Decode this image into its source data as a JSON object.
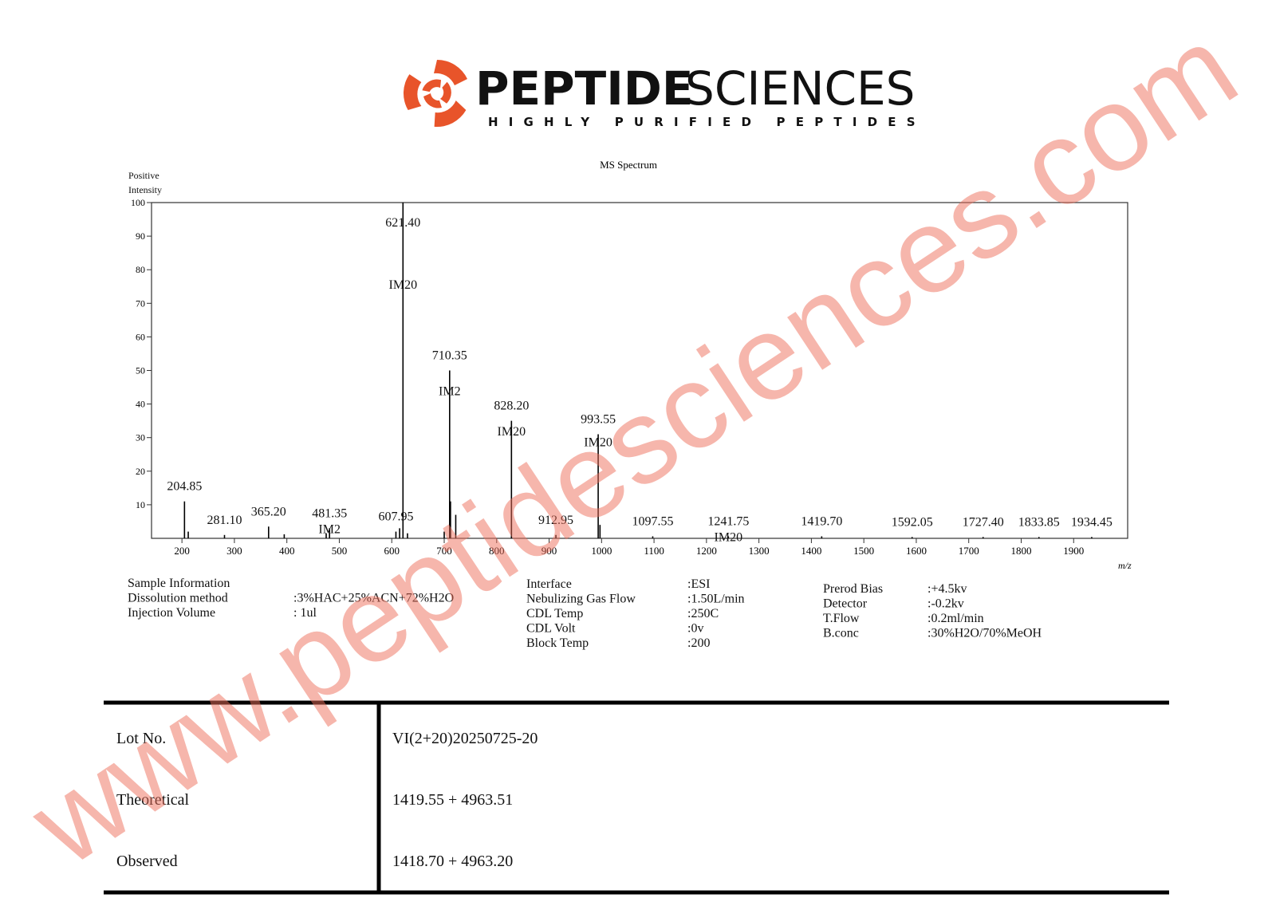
{
  "header": {
    "brand_bold": "PEPTIDE",
    "brand_light": "SCIENCES",
    "tagline": "HIGHLY PURIFIED PEPTIDES"
  },
  "chart_data": {
    "type": "stick",
    "title": "MS Spectrum",
    "ylabel": "Positive Intensity",
    "xlabel": "m/z",
    "x": [
      204.85,
      212,
      281.1,
      365.2,
      395,
      475,
      481.35,
      607.95,
      615,
      621.4,
      630,
      700,
      710.35,
      712,
      722,
      828.2,
      912.95,
      993.55,
      997,
      1097.55,
      1241.75,
      1419.7,
      1592.05,
      1727.4,
      1833.85,
      1934.45
    ],
    "values": [
      11,
      2,
      1,
      3.5,
      1.2,
      1.5,
      3,
      2,
      3,
      100,
      1.5,
      2,
      50,
      11,
      7,
      35,
      1,
      31,
      4,
      0.6,
      0.6,
      0.6,
      0.4,
      0.4,
      0.4,
      0.4
    ],
    "x_labels": [
      "204.85",
      null,
      "281.10",
      "365.20",
      null,
      null,
      "481.35",
      "607.95",
      null,
      "621.40",
      null,
      null,
      "710.35",
      null,
      null,
      "828.20",
      "912.95",
      "993.55",
      null,
      "1097.55",
      "1241.75",
      "1419.70",
      "1592.05",
      "1727.40",
      "1833.85",
      "1934.45"
    ],
    "tags": [
      null,
      null,
      null,
      null,
      null,
      null,
      "IM2",
      null,
      null,
      "IM20",
      null,
      null,
      "IM2",
      null,
      null,
      "IM20",
      null,
      "IM20",
      null,
      null,
      "IM20",
      null,
      null,
      null,
      null,
      null
    ],
    "color": "#000000",
    "xlim": [
      142,
      2003
    ],
    "ylim": [
      0,
      100
    ],
    "xticks": [
      200,
      300,
      400,
      500,
      600,
      700,
      800,
      900,
      1000,
      1100,
      1200,
      1300,
      1400,
      1500,
      1600,
      1700,
      1800,
      1900
    ],
    "yticks": [
      10,
      20,
      30,
      40,
      50,
      60,
      70,
      80,
      90,
      100
    ]
  },
  "sample_info": {
    "col1": [
      {
        "label": "Sample Information",
        "value": null
      },
      {
        "label": "Dissolution method",
        "value": ":3%HAC+25%ACN+72%H2O"
      },
      {
        "label": "Injection Volume",
        "value": ": 1ul"
      }
    ],
    "col2": [
      {
        "label": "Interface",
        "value": ":ESI"
      },
      {
        "label": "Nebulizing Gas Flow",
        "value": ":1.50L/min"
      },
      {
        "label": "CDL Temp",
        "value": ":250C"
      },
      {
        "label": "CDL Volt",
        "value": ":0v"
      },
      {
        "label": "Block Temp",
        "value": ":200"
      }
    ],
    "col3": [
      {
        "label": "Prerod Bias",
        "value": ":+4.5kv"
      },
      {
        "label": "Detector",
        "value": ":-0.2kv"
      },
      {
        "label": "T.Flow",
        "value": ":0.2ml/min"
      },
      {
        "label": "B.conc",
        "value": ":30%H2O/70%MeOH"
      }
    ]
  },
  "table": {
    "rows": [
      [
        "Lot No.",
        "VI(2+20)20250725-20"
      ],
      [
        "Theoretical",
        "1419.55 + 4963.51"
      ],
      [
        "Observed",
        "1418.70 + 4963.20"
      ]
    ]
  },
  "watermark": "www.peptidesciences.com"
}
